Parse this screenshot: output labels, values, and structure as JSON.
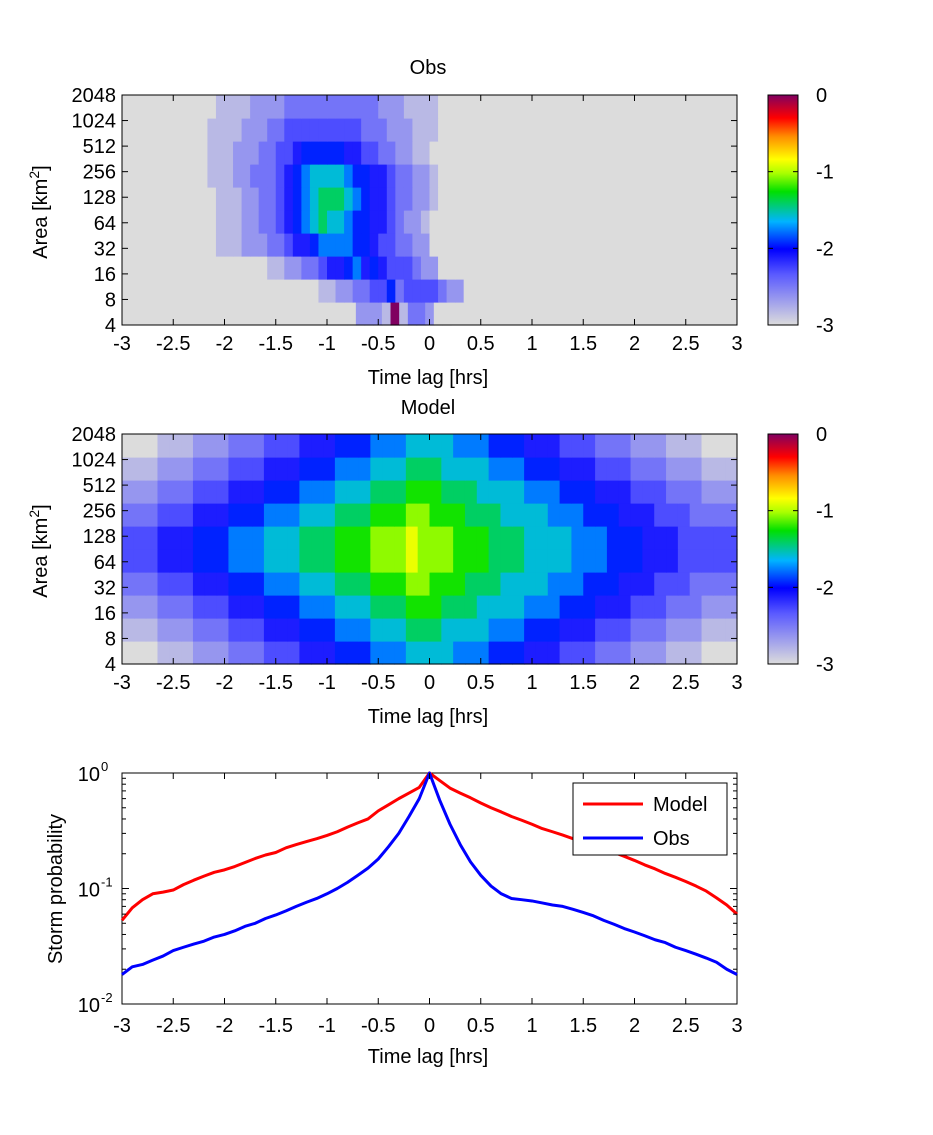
{
  "chart_data": [
    {
      "type": "heatmap",
      "title": "Obs",
      "xlabel": "Time lag [hrs]",
      "ylabel": "Area [km²]",
      "xlim": [
        -3,
        3
      ],
      "xticks": [
        "-3",
        "-2.5",
        "-2",
        "-1.5",
        "-1",
        "-0.5",
        "0",
        "0.5",
        "1",
        "1.5",
        "2",
        "2.5",
        "3"
      ],
      "yticks": [
        "4",
        "8",
        "16",
        "32",
        "64",
        "128",
        "256",
        "512",
        "1024",
        "2048"
      ],
      "colorbar": {
        "range": [
          -3,
          0
        ],
        "ticks": [
          "-3",
          "-2",
          "-1",
          "0"
        ]
      },
      "value_scale": "log10 storm probability",
      "rows": [
        "........................HHHFFFG+GEEFHH.................................",
        "..................HHHHHGGFFEEDDBEDDDDEFFHHHH............................",
        "..........HHHHHHHGGFFEEDCCBACBCDDDEFFHHH................................",
        "....HHHHHHHGGGFFFEEDCCBAAAABBCDDEEFFHHHHH...............................",
        "...HHHHHHHHGGGFFEEDCBA9899ABBCCDEFFGHHHHHH..............................",
        "....HHHHHHHGGGFFEEDCBA98889ABCCDEEFFGHHHHH..............................",
        "...HHHHHHHGGGFFEEEDCBA9999ABBCCDEEFFGHHHHH..............................",
        ".HHHHHHHHHGGGFFFEEDDCBBBBBCCDDEEFFGGHHHHH...............................",
        "HHHHHHHHHHGGGGFFFEEDDDDDDDDDEEEFFFGGGHHHHH..............................",
        "HHHHHHHHHHHGGGGFFFFEEEEEEEEEEEFFFGGGGHHHH..............................."
      ]
    },
    {
      "type": "heatmap",
      "title": "Model",
      "xlabel": "Time lag [hrs]",
      "ylabel": "Area [km²]",
      "xlim": [
        -3,
        3
      ],
      "xticks": [
        "-3",
        "-2.5",
        "-2",
        "-1.5",
        "-1",
        "-0.5",
        "0",
        "0.5",
        "1",
        "1.5",
        "2",
        "2.5",
        "3"
      ],
      "yticks": [
        "4",
        "8",
        "16",
        "32",
        "64",
        "128",
        "256",
        "512",
        "1024",
        "2048"
      ],
      "colorbar": {
        "range": [
          -3,
          0
        ],
        "ticks": [
          "-3",
          "-2",
          "-1",
          "0"
        ]
      },
      "value_scale": "log10 storm probability",
      "rows": [
        "HHHGGGFFFEEEDDDCCCBBBAAA9999AAABBBCCCDDDEEEFFFGGGHHH",
        "GGGFFFEEEDDDCCCBBBAAA9998889999AAABBBCCCDDDEEEFFFGGG",
        "FFFEEEDDDCCCBBBAAA9998887778889999AAABBBCCCDDDEEEFFF",
        "EEEDDDCCCBBBAAA999888777667778889999AAABBBCCCDDDEEEE",
        "DDDCCCBBBAAA99988877766656667778889999AAABBBCCCDDDDD",
        "DDDCCCBBBAAA99988877766656667778889999AAABBBCCCDDDDD",
        "EEEDDDCCCBBBAAA999888777667778889999AAABBBCCCDDDEEEE",
        "FFFEEEDDDCCCBBBAAA9998887778889999AAABBBCCCDDDEEEFFF",
        "GGGFFFEEEDDDCCCBBBAAA9998889999AAABBBCCCDDDEEEFFFGGG",
        "HHHGGGFFFEEEDDDCCCBBBAAA9999AAABBBCCCDDDEEEFFFGGGHHH"
      ]
    },
    {
      "type": "line",
      "xlabel": "Time lag [hrs]",
      "ylabel": "Storm probability",
      "xlim": [
        -3,
        3
      ],
      "ylim": [
        0.01,
        1
      ],
      "yscale": "log",
      "xticks": [
        "-3",
        "-2.5",
        "-2",
        "-1.5",
        "-1",
        "-0.5",
        "0",
        "0.5",
        "1",
        "1.5",
        "2",
        "2.5",
        "3"
      ],
      "yticks": [
        {
          "base": "10",
          "exp": "-2",
          "value": 0.01
        },
        {
          "base": "10",
          "exp": "-1",
          "value": 0.1
        },
        {
          "base": "10",
          "exp": "0",
          "value": 1
        }
      ],
      "legend": {
        "position": "top-right",
        "entries": [
          "Model",
          "Obs"
        ]
      },
      "series": [
        {
          "name": "Model",
          "color": "#ff0000",
          "x": [
            -3.0,
            -2.9,
            -2.8,
            -2.7,
            -2.6,
            -2.5,
            -2.4,
            -2.3,
            -2.2,
            -2.1,
            -2.0,
            -1.9,
            -1.8,
            -1.7,
            -1.6,
            -1.5,
            -1.4,
            -1.3,
            -1.2,
            -1.1,
            -1.0,
            -0.9,
            -0.8,
            -0.7,
            -0.6,
            -0.5,
            -0.4,
            -0.3,
            -0.2,
            -0.1,
            0.0,
            0.1,
            0.2,
            0.3,
            0.4,
            0.5,
            0.6,
            0.7,
            0.8,
            0.9,
            1.0,
            1.1,
            1.2,
            1.3,
            1.4,
            1.5,
            1.6,
            1.7,
            1.8,
            1.9,
            2.0,
            2.1,
            2.2,
            2.3,
            2.4,
            2.5,
            2.6,
            2.7,
            2.8,
            2.9,
            3.0
          ],
          "y": [
            0.053,
            0.068,
            0.08,
            0.09,
            0.093,
            0.097,
            0.108,
            0.118,
            0.128,
            0.138,
            0.145,
            0.155,
            0.168,
            0.182,
            0.195,
            0.205,
            0.225,
            0.24,
            0.255,
            0.27,
            0.288,
            0.31,
            0.34,
            0.37,
            0.4,
            0.47,
            0.53,
            0.6,
            0.67,
            0.75,
            1.0,
            0.86,
            0.74,
            0.67,
            0.61,
            0.55,
            0.5,
            0.46,
            0.42,
            0.39,
            0.36,
            0.33,
            0.31,
            0.29,
            0.27,
            0.25,
            0.235,
            0.22,
            0.205,
            0.19,
            0.175,
            0.16,
            0.148,
            0.135,
            0.125,
            0.115,
            0.105,
            0.095,
            0.083,
            0.072,
            0.06
          ]
        },
        {
          "name": "Obs",
          "color": "#0000ff",
          "x": [
            -3.0,
            -2.9,
            -2.8,
            -2.7,
            -2.6,
            -2.5,
            -2.4,
            -2.3,
            -2.2,
            -2.1,
            -2.0,
            -1.9,
            -1.8,
            -1.7,
            -1.6,
            -1.5,
            -1.4,
            -1.3,
            -1.2,
            -1.1,
            -1.0,
            -0.9,
            -0.8,
            -0.7,
            -0.6,
            -0.5,
            -0.4,
            -0.3,
            -0.2,
            -0.1,
            0.0,
            0.1,
            0.2,
            0.3,
            0.4,
            0.5,
            0.6,
            0.7,
            0.8,
            0.9,
            1.0,
            1.1,
            1.2,
            1.3,
            1.4,
            1.5,
            1.6,
            1.7,
            1.8,
            1.9,
            2.0,
            2.1,
            2.2,
            2.3,
            2.4,
            2.5,
            2.6,
            2.7,
            2.8,
            2.9,
            3.0
          ],
          "y": [
            0.018,
            0.021,
            0.022,
            0.024,
            0.026,
            0.029,
            0.031,
            0.033,
            0.035,
            0.038,
            0.04,
            0.043,
            0.047,
            0.05,
            0.055,
            0.059,
            0.064,
            0.07,
            0.076,
            0.082,
            0.09,
            0.1,
            0.113,
            0.13,
            0.15,
            0.18,
            0.23,
            0.3,
            0.42,
            0.6,
            1.0,
            0.58,
            0.36,
            0.24,
            0.17,
            0.13,
            0.105,
            0.09,
            0.082,
            0.08,
            0.078,
            0.075,
            0.072,
            0.07,
            0.066,
            0.062,
            0.058,
            0.053,
            0.049,
            0.045,
            0.042,
            0.039,
            0.036,
            0.034,
            0.031,
            0.029,
            0.027,
            0.025,
            0.023,
            0.02,
            0.018
          ]
        }
      ]
    }
  ]
}
